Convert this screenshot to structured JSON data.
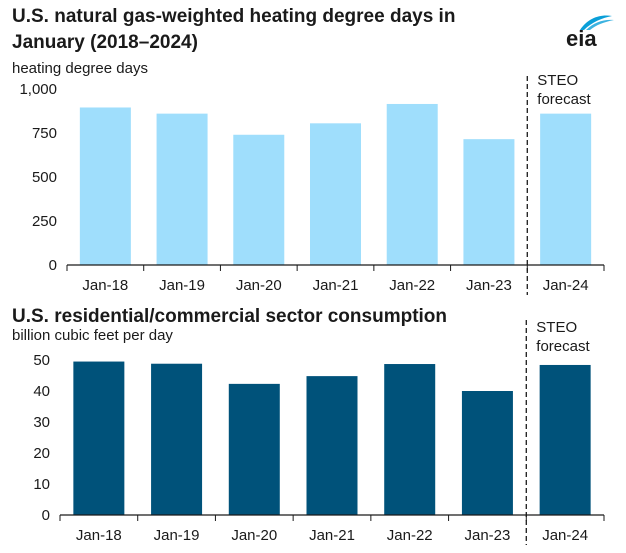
{
  "branding": {
    "logo_text": "eia",
    "logo_icon": "eia-swoosh-icon",
    "logo_color": "#0a9fd8"
  },
  "chart_data": [
    {
      "type": "bar",
      "title": "U.S. natural gas-weighted heating degree days in January (2018–2024)",
      "ylabel": "heating degree days",
      "categories": [
        "Jan-18",
        "Jan-19",
        "Jan-20",
        "Jan-21",
        "Jan-22",
        "Jan-23",
        "Jan-24"
      ],
      "values": [
        895,
        860,
        740,
        805,
        915,
        715,
        860
      ],
      "ylim": [
        0,
        1000
      ],
      "yticks": [
        0,
        250,
        500,
        750,
        1000
      ],
      "ytick_labels": [
        "0",
        "250",
        "500",
        "750",
        "1,000"
      ],
      "forecast_label": [
        "STEO",
        "forecast"
      ],
      "forecast_start_index": 6,
      "bar_color": "#9fdefc",
      "grid": false
    },
    {
      "type": "bar",
      "title": "U.S. residential/commercial sector consumption",
      "ylabel": "billion cubic feet per day",
      "categories": [
        "Jan-18",
        "Jan-19",
        "Jan-20",
        "Jan-21",
        "Jan-22",
        "Jan-23",
        "Jan-24"
      ],
      "values": [
        49.5,
        48.8,
        42.3,
        44.8,
        48.7,
        40.0,
        48.4
      ],
      "ylim": [
        0,
        50
      ],
      "yticks": [
        0,
        10,
        20,
        30,
        40,
        50
      ],
      "ytick_labels": [
        "0",
        "10",
        "20",
        "30",
        "40",
        "50"
      ],
      "forecast_label": [
        "STEO",
        "forecast"
      ],
      "forecast_start_index": 6,
      "bar_color": "#00527a",
      "grid": false
    }
  ]
}
